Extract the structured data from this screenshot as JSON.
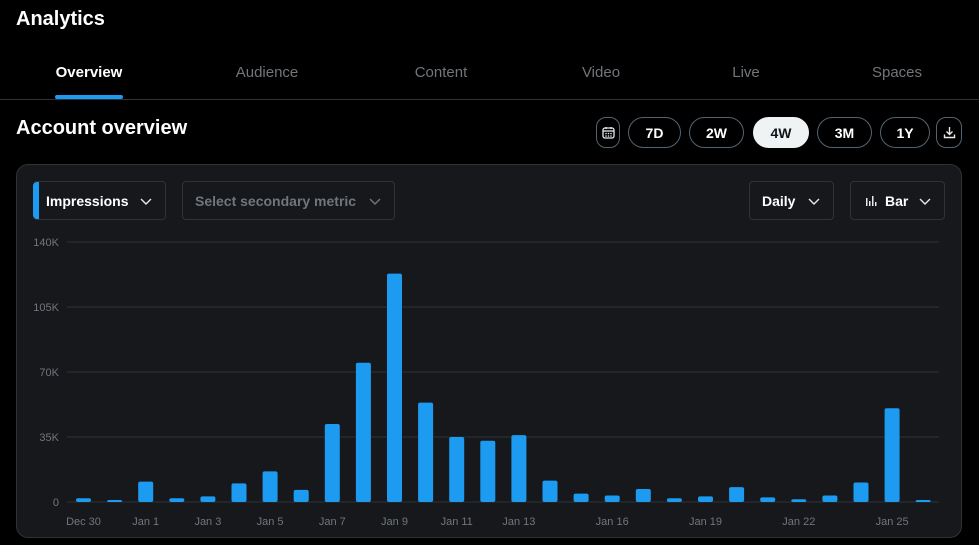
{
  "app": {
    "title": "Analytics"
  },
  "tabs": [
    {
      "label": "Overview",
      "active": true
    },
    {
      "label": "Audience",
      "active": false
    },
    {
      "label": "Content",
      "active": false
    },
    {
      "label": "Video",
      "active": false
    },
    {
      "label": "Live",
      "active": false
    },
    {
      "label": "Spaces",
      "active": false
    }
  ],
  "section": {
    "title": "Account overview"
  },
  "range": {
    "options": [
      "7D",
      "2W",
      "4W",
      "3M",
      "1Y"
    ],
    "selected": "4W",
    "calendar_icon": "calendar-icon",
    "download_icon": "download-icon"
  },
  "controls": {
    "primary_metric": "Impressions",
    "secondary_metric_placeholder": "Select secondary metric",
    "interval": "Daily",
    "chart_type": "Bar"
  },
  "colors": {
    "accent": "#1d9bf0",
    "background": "#000000",
    "card": "#16181c",
    "muted": "#71767b"
  },
  "chart_data": {
    "type": "bar",
    "series": [
      {
        "values": [
          2000,
          1000,
          11000,
          2000,
          3000,
          10000,
          16500,
          6500,
          42000,
          75000,
          123000,
          53500,
          35000,
          33000,
          36000,
          11500,
          4500,
          3500,
          7000,
          2000,
          3000,
          8000,
          2500,
          1500,
          3500,
          10500,
          50500,
          500
        ]
      }
    ],
    "categories": [
      "Dec 30",
      "Dec 31",
      "Jan 1",
      "Jan 2",
      "Jan 3",
      "Jan 4",
      "Jan 5",
      "Jan 6",
      "Jan 7",
      "Jan 8",
      "Jan 9",
      "Jan 10",
      "Jan 11",
      "Jan 12",
      "Jan 13",
      "Jan 14",
      "Jan 15",
      "Jan 16",
      "Jan 17",
      "Jan 18",
      "Jan 19",
      "Jan 20",
      "Jan 21",
      "Jan 22",
      "Jan 23",
      "Jan 24",
      "Jan 25",
      "Jan 26"
    ],
    "x_tick_labels": [
      "Dec 30",
      "Jan 1",
      "Jan 3",
      "Jan 5",
      "Jan 7",
      "Jan 9",
      "Jan 11",
      "Jan 13",
      "Jan 16",
      "Jan 19",
      "Jan 22",
      "Jan 25"
    ],
    "y_ticks": [
      "0",
      "35K",
      "70K",
      "105K",
      "140K"
    ],
    "ylim": [
      0,
      140000
    ],
    "grid": true,
    "color": "#1d9bf0"
  }
}
